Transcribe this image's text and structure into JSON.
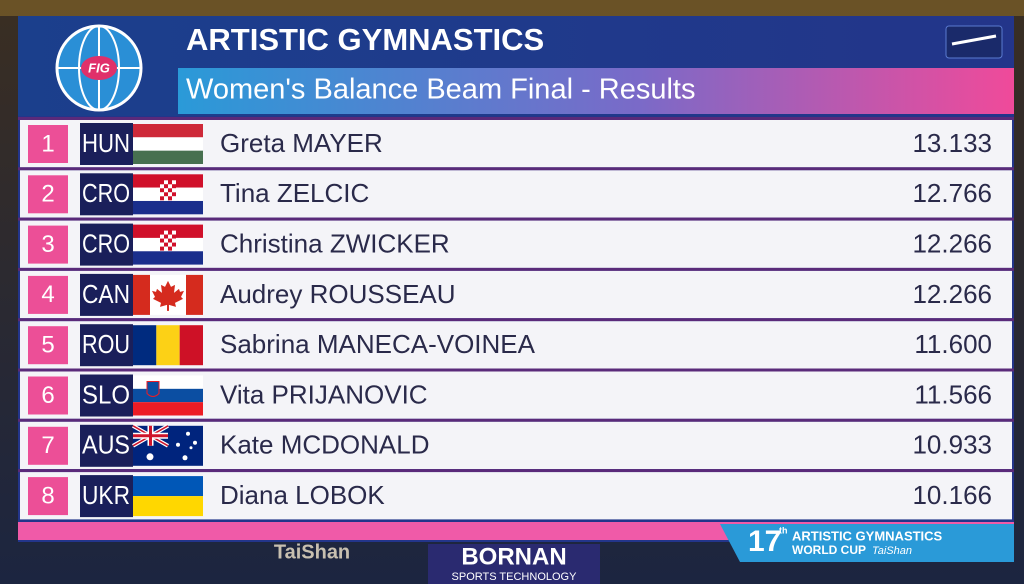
{
  "header": {
    "logo": "FIG",
    "title": "ARTISTIC GYMNASTICS",
    "subtitle": "Women's Balance Beam Final - Results"
  },
  "results": [
    {
      "rank": 1,
      "country": "HUN",
      "name": "Greta MAYER",
      "score": "13.133"
    },
    {
      "rank": 2,
      "country": "CRO",
      "name": "Tina ZELCIC",
      "score": "12.766"
    },
    {
      "rank": 3,
      "country": "CRO",
      "name": "Christina ZWICKER",
      "score": "12.266"
    },
    {
      "rank": 4,
      "country": "CAN",
      "name": "Audrey ROUSSEAU",
      "score": "12.266"
    },
    {
      "rank": 5,
      "country": "ROU",
      "name": "Sabrina MANECA-VOINEA",
      "score": "11.600"
    },
    {
      "rank": 6,
      "country": "SLO",
      "name": "Vita PRIJANOVIC",
      "score": "11.566"
    },
    {
      "rank": 7,
      "country": "AUS",
      "name": "Kate MCDONALD",
      "score": "10.933"
    },
    {
      "rank": 8,
      "country": "UKR",
      "name": "Diana LOBOK",
      "score": "10.166"
    }
  ],
  "footer": {
    "event_number": "17",
    "event_suffix": "th",
    "event_line1": "ARTISTIC GYMNASTICS",
    "event_line2": "WORLD CUP",
    "event_city": "TaiShan",
    "sponsor": "BORNAN",
    "sponsor_tagline": "SPORTS TECHNOLOGY",
    "venue_sign": "TaiShan"
  }
}
